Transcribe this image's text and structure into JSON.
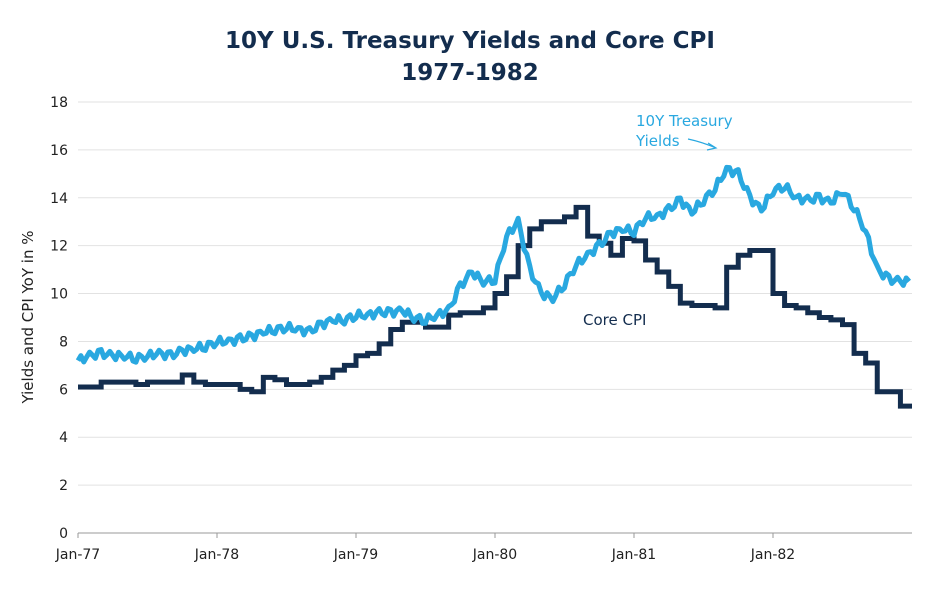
{
  "chart_data": {
    "type": "line",
    "title": "10Y U.S. Treasury Yields and Core CPI",
    "subtitle": "1977-1982",
    "xlabel": "",
    "ylabel": "Yields and CPI YoY in %",
    "ylim": [
      0,
      18
    ],
    "yticks": [
      "0",
      "2",
      "4",
      "6",
      "8",
      "10",
      "12",
      "14",
      "16",
      "18"
    ],
    "xticks": [
      "Jan-77",
      "Jan-78",
      "Jan-79",
      "Jan-80",
      "Jan-81",
      "Jan-82"
    ],
    "grid": "horizontal",
    "colors": {
      "yields": "#29a8e0",
      "cpi": "#132d4e"
    },
    "series": [
      {
        "name": "10Y Treasury Yields",
        "label_lines": [
          "10Y Treasury",
          "Yields"
        ],
        "values": [
          7.2,
          7.4,
          7.5,
          7.4,
          7.4,
          7.3,
          7.4,
          7.5,
          7.4,
          7.6,
          7.7,
          7.8,
          8.0,
          8.0,
          8.1,
          8.2,
          8.4,
          8.5,
          8.6,
          8.5,
          8.4,
          8.7,
          8.9,
          8.9,
          9.1,
          9.1,
          9.2,
          9.2,
          9.3,
          9.0,
          8.9,
          9.1,
          9.3,
          10.3,
          10.9,
          10.5,
          10.6,
          12.4,
          13.0,
          11.0,
          10.0,
          9.8,
          10.4,
          11.2,
          11.6,
          12.0,
          12.5,
          12.7,
          12.6,
          13.2,
          13.2,
          13.5,
          13.9,
          13.4,
          13.9,
          14.4,
          15.2,
          15.0,
          14.0,
          13.5,
          14.3,
          14.5,
          14.0,
          13.9,
          14.0,
          13.8,
          14.3,
          13.6,
          12.6,
          11.0,
          10.6,
          10.5
        ]
      },
      {
        "name": "Core CPI",
        "label_lines": [
          "Core CPI"
        ],
        "values": [
          6.1,
          6.1,
          6.3,
          6.3,
          6.3,
          6.2,
          6.3,
          6.3,
          6.3,
          6.6,
          6.3,
          6.2,
          6.2,
          6.2,
          6.0,
          5.9,
          6.5,
          6.4,
          6.2,
          6.2,
          6.3,
          6.5,
          6.8,
          7.0,
          7.4,
          7.5,
          7.9,
          8.5,
          8.8,
          8.8,
          8.6,
          8.6,
          9.1,
          9.2,
          9.2,
          9.4,
          10.0,
          10.7,
          12.0,
          12.7,
          13.0,
          13.0,
          13.2,
          13.6,
          12.4,
          12.1,
          11.6,
          12.3,
          12.2,
          11.4,
          10.9,
          10.3,
          9.6,
          9.5,
          9.5,
          9.4,
          11.1,
          11.6,
          11.8,
          11.8,
          10.0,
          9.5,
          9.4,
          9.2,
          9.0,
          8.9,
          8.7,
          7.5,
          7.1,
          5.9,
          5.9,
          5.3
        ]
      }
    ]
  }
}
